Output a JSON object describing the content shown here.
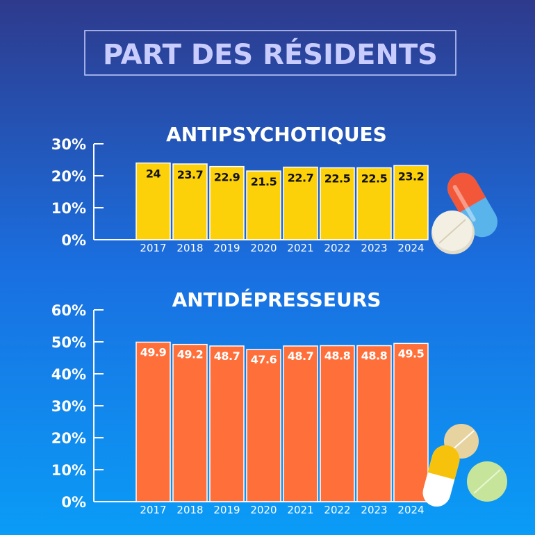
{
  "title": "PART DES RÉSIDENTS",
  "colors": {
    "bg_top": "#2e3a8c",
    "bg_bottom": "#0a9cf7",
    "antipsychotiques": "#fdd10a",
    "antidepresseurs": "#ff6f3a"
  },
  "chart_data": [
    {
      "type": "bar",
      "title": "ANTIPSYCHOTIQUES",
      "categories": [
        "2017",
        "2018",
        "2019",
        "2020",
        "2021",
        "2022",
        "2023",
        "2024"
      ],
      "values": [
        24,
        23.7,
        22.9,
        21.5,
        22.7,
        22.5,
        22.5,
        23.2
      ],
      "data_labels": [
        "24",
        "23.7",
        "22.9",
        "21.5",
        "22.7",
        "22.5",
        "22.5",
        "23.2"
      ],
      "ylim": [
        0,
        30
      ],
      "yticks": [
        "0%",
        "10%",
        "20%",
        "30%"
      ],
      "grid": false
    },
    {
      "type": "bar",
      "title": "ANTIDÉPRESSEURS",
      "categories": [
        "2017",
        "2018",
        "2019",
        "2020",
        "2021",
        "2022",
        "2023",
        "2024"
      ],
      "values": [
        49.9,
        49.2,
        48.7,
        47.6,
        48.7,
        48.8,
        48.8,
        49.5
      ],
      "data_labels": [
        "49.9",
        "49.2",
        "48.7",
        "47.6",
        "48.7",
        "48.8",
        "48.8",
        "49.5"
      ],
      "ylim": [
        0,
        60
      ],
      "yticks": [
        "0%",
        "10%",
        "20%",
        "30%",
        "40%",
        "50%",
        "60%"
      ],
      "grid": false
    }
  ]
}
